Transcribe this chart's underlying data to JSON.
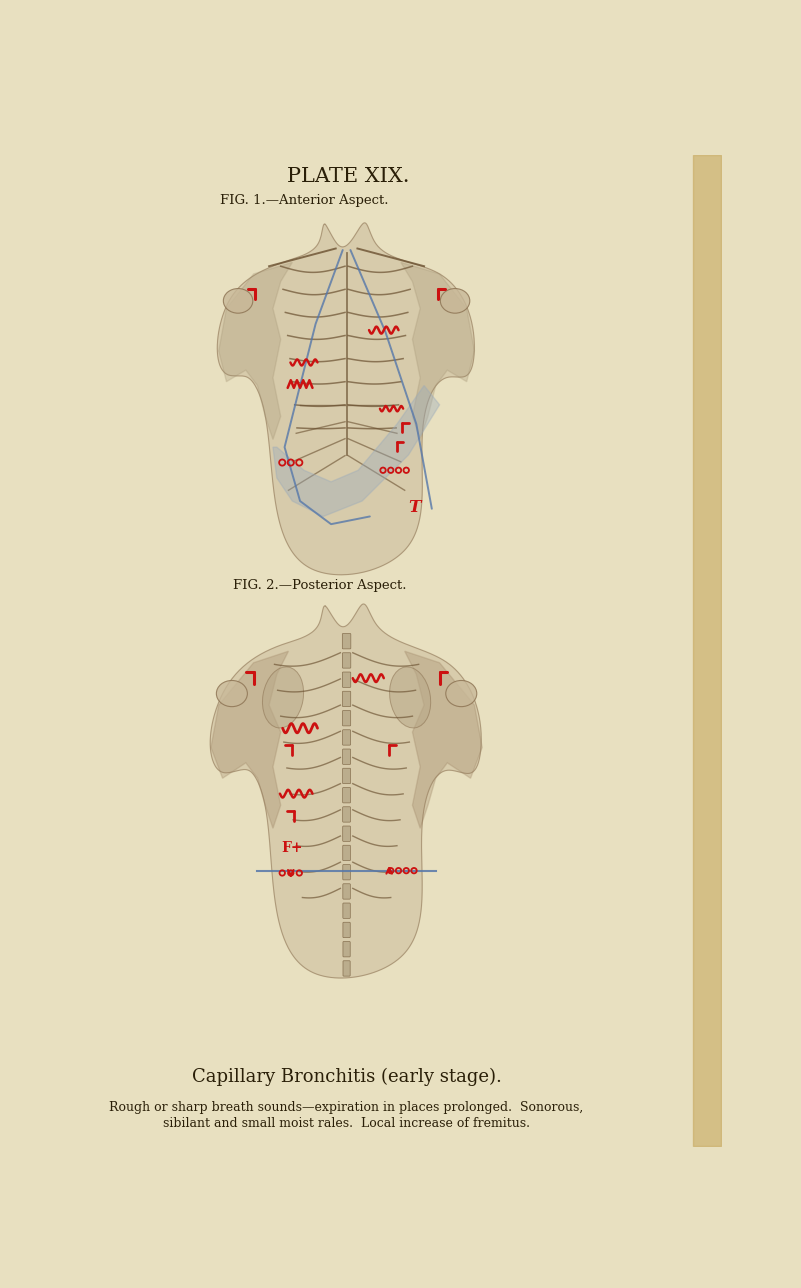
{
  "bg_color": "#e8e0c0",
  "title": "PLATE XIX.",
  "fig1_label": "FIG. 1.—Anterior Aspect.",
  "fig2_label": "FIG. 2.—Posterior Aspect.",
  "caption_title": "Capillary Bronchitis (early stage).",
  "caption_line1": "Rough or sharp breath sounds—expiration in places prolonged.  Sonorous,",
  "caption_line2": "sibilant and small moist rales.  Local increase of fremitus.",
  "title_fontsize": 15,
  "figlabel_fontsize": 9.5,
  "caption_title_fontsize": 13,
  "caption_body_fontsize": 9,
  "red_color": "#cc1111",
  "blue_color": "#5577aa",
  "text_color": "#2a1f08",
  "body_fill": "#c8b898",
  "body_edge": "#8a7050",
  "rib_color": "#6a5030",
  "shade_color": "#99aabb",
  "right_strip_color": "#c8aa60"
}
